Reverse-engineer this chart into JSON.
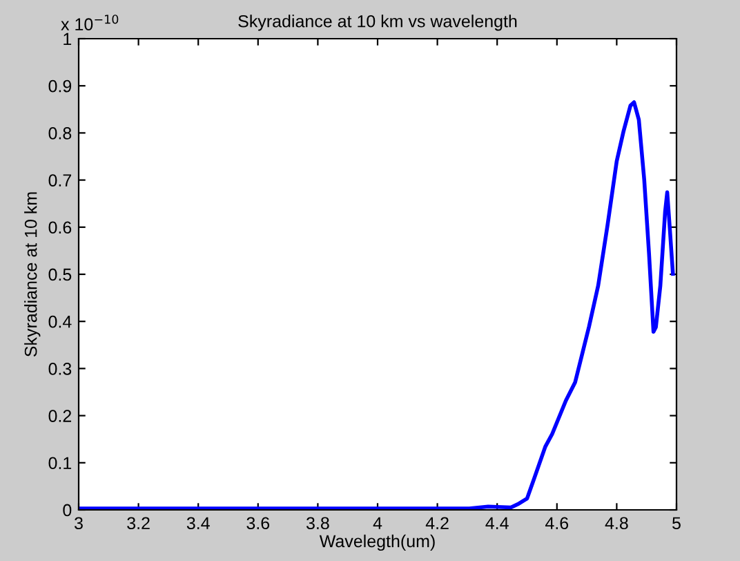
{
  "chart_data": {
    "type": "line",
    "title": "Skyradiance at 10 km vs wavelength",
    "xlabel": "Wavelegth(um)",
    "ylabel": "Skyradiance at 10 km",
    "annotations": [
      "x 10$^{−10}$"
    ],
    "series": [
      {
        "color": "#0000ff",
        "x": [
          3.0,
          3.5,
          4.0,
          4.2,
          4.307,
          4.37,
          4.446,
          4.469,
          4.5,
          4.523,
          4.561,
          4.584,
          4.63,
          4.661,
          4.707,
          4.738,
          4.769,
          4.8,
          4.823,
          4.846,
          4.858,
          4.874,
          4.892,
          4.908,
          4.923,
          4.931,
          4.946,
          4.962,
          4.969,
          4.978,
          4.988
        ],
        "values": [
          0.003,
          0.003,
          0.003,
          0.003,
          0.003,
          0.007,
          0.005,
          0.012,
          0.024,
          0.065,
          0.134,
          0.161,
          0.232,
          0.271,
          0.388,
          0.476,
          0.603,
          0.74,
          0.804,
          0.858,
          0.865,
          0.828,
          0.701,
          0.545,
          0.378,
          0.388,
          0.476,
          0.633,
          0.674,
          0.594,
          0.501
        ]
      }
    ],
    "xlim": [
      3,
      5
    ],
    "ylim": [
      0,
      1
    ],
    "xticks": [
      3,
      3.2,
      3.4,
      3.6,
      3.8,
      4,
      4.2,
      4.4,
      4.6,
      4.8,
      5
    ],
    "yticks": [
      0,
      0.1,
      0.2,
      0.3,
      0.4,
      0.5,
      0.6,
      0.7,
      0.8,
      0.9,
      1
    ],
    "grid": false,
    "legend": false,
    "marker": "none",
    "line_style": "solid"
  }
}
